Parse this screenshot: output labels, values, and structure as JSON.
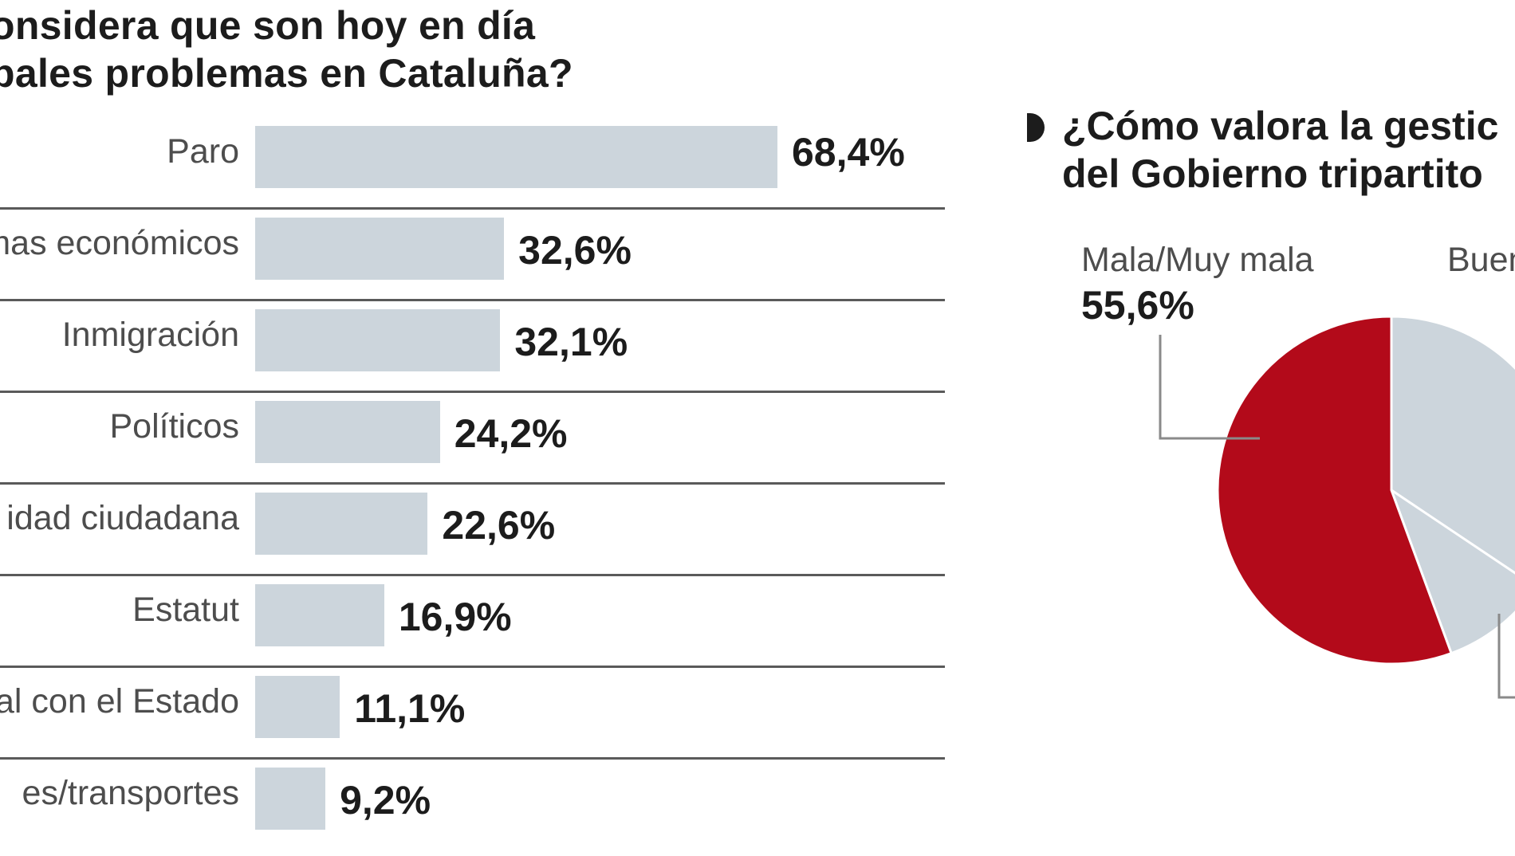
{
  "chart_data": [
    {
      "type": "bar",
      "title": "onsidera que son hoy en día\npales problemas en Cataluña?",
      "categories": [
        "Paro",
        "mas económicos",
        "Inmigración",
        "Políticos",
        "idad ciudadana",
        "Estatut",
        "al con el Estado",
        "es/transportes"
      ],
      "values": [
        68.4,
        32.6,
        32.1,
        24.2,
        22.6,
        16.9,
        11.1,
        9.2
      ],
      "value_labels": [
        "68,4%",
        "32,6%",
        "32,1%",
        "24,2%",
        "22,6%",
        "16,9%",
        "11,1%",
        "9,2%"
      ],
      "xlim": [
        0,
        100
      ],
      "orientation": "horizontal",
      "grid": false
    },
    {
      "type": "pie",
      "title": "¿Cómo valora la gestic\ndel Gobierno tripartito",
      "slices": [
        {
          "label": "Mala/Muy mala",
          "value": 55.6,
          "value_label": "55,6%",
          "color": "#b30a1a"
        },
        {
          "label": "Buen",
          "value": 34.4,
          "value_label": "",
          "color": "#ccd5dc"
        },
        {
          "label": "",
          "value": 10.0,
          "value_label": "",
          "color": "#ccd5dc"
        }
      ]
    }
  ],
  "colors": {
    "bar": "#ccd5dc",
    "pie_highlight": "#b30a1a",
    "pie_other": "#ccd5dc",
    "divider": "#5a5a5a",
    "leader": "#8a8a8a"
  },
  "icons": {
    "bullet": "half-circle-bullet-icon"
  }
}
